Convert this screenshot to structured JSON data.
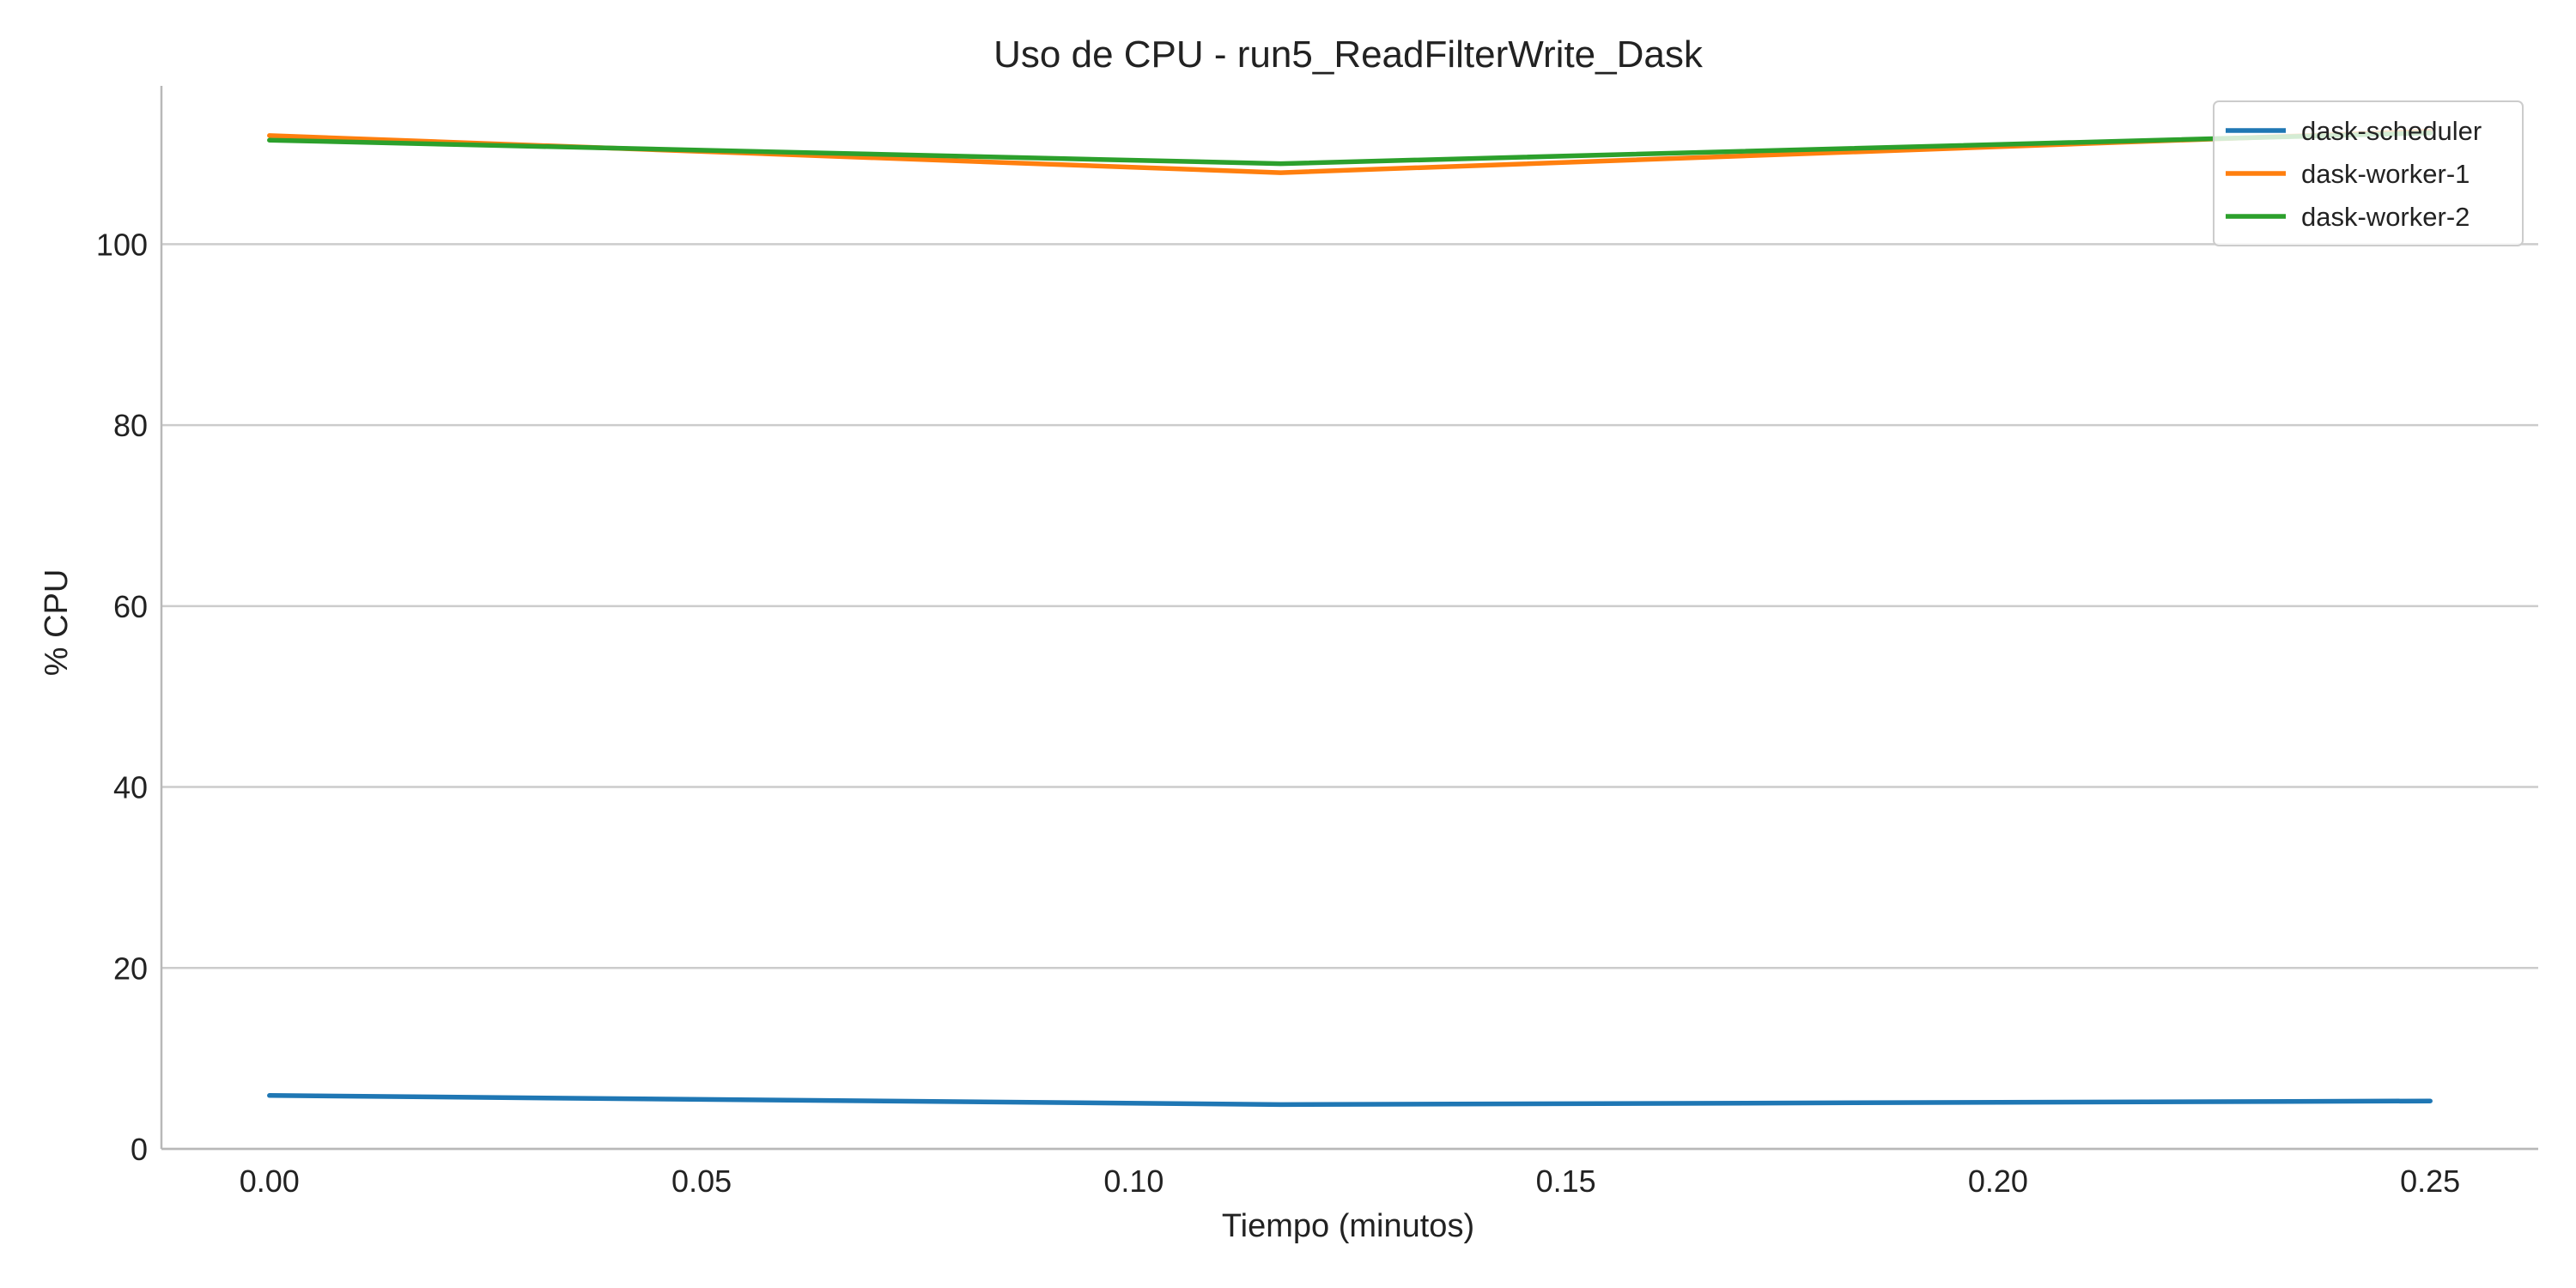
{
  "chart_data": {
    "type": "line",
    "title": "Uso de CPU - run5_ReadFilterWrite_Dask",
    "xlabel": "Tiempo (minutos)",
    "ylabel": "% CPU",
    "xlim": [
      -0.0125,
      0.2625
    ],
    "ylim": [
      0,
      117.5
    ],
    "xticks": [
      "0.00",
      "0.05",
      "0.10",
      "0.15",
      "0.20",
      "0.25"
    ],
    "yticks": [
      "0",
      "20",
      "40",
      "60",
      "80",
      "100"
    ],
    "grid": "horizontal",
    "legend_position": "top-right",
    "x": [
      0.0,
      0.117,
      0.25
    ],
    "series": [
      {
        "name": "dask-scheduler",
        "color": "#1f77b4",
        "values": [
          5.9,
          4.9,
          5.3
        ]
      },
      {
        "name": "dask-worker-1",
        "color": "#ff7f0e",
        "values": [
          112.0,
          107.9,
          112.5
        ]
      },
      {
        "name": "dask-worker-2",
        "color": "#2ca02c",
        "values": [
          111.5,
          108.9,
          112.3
        ]
      }
    ]
  }
}
